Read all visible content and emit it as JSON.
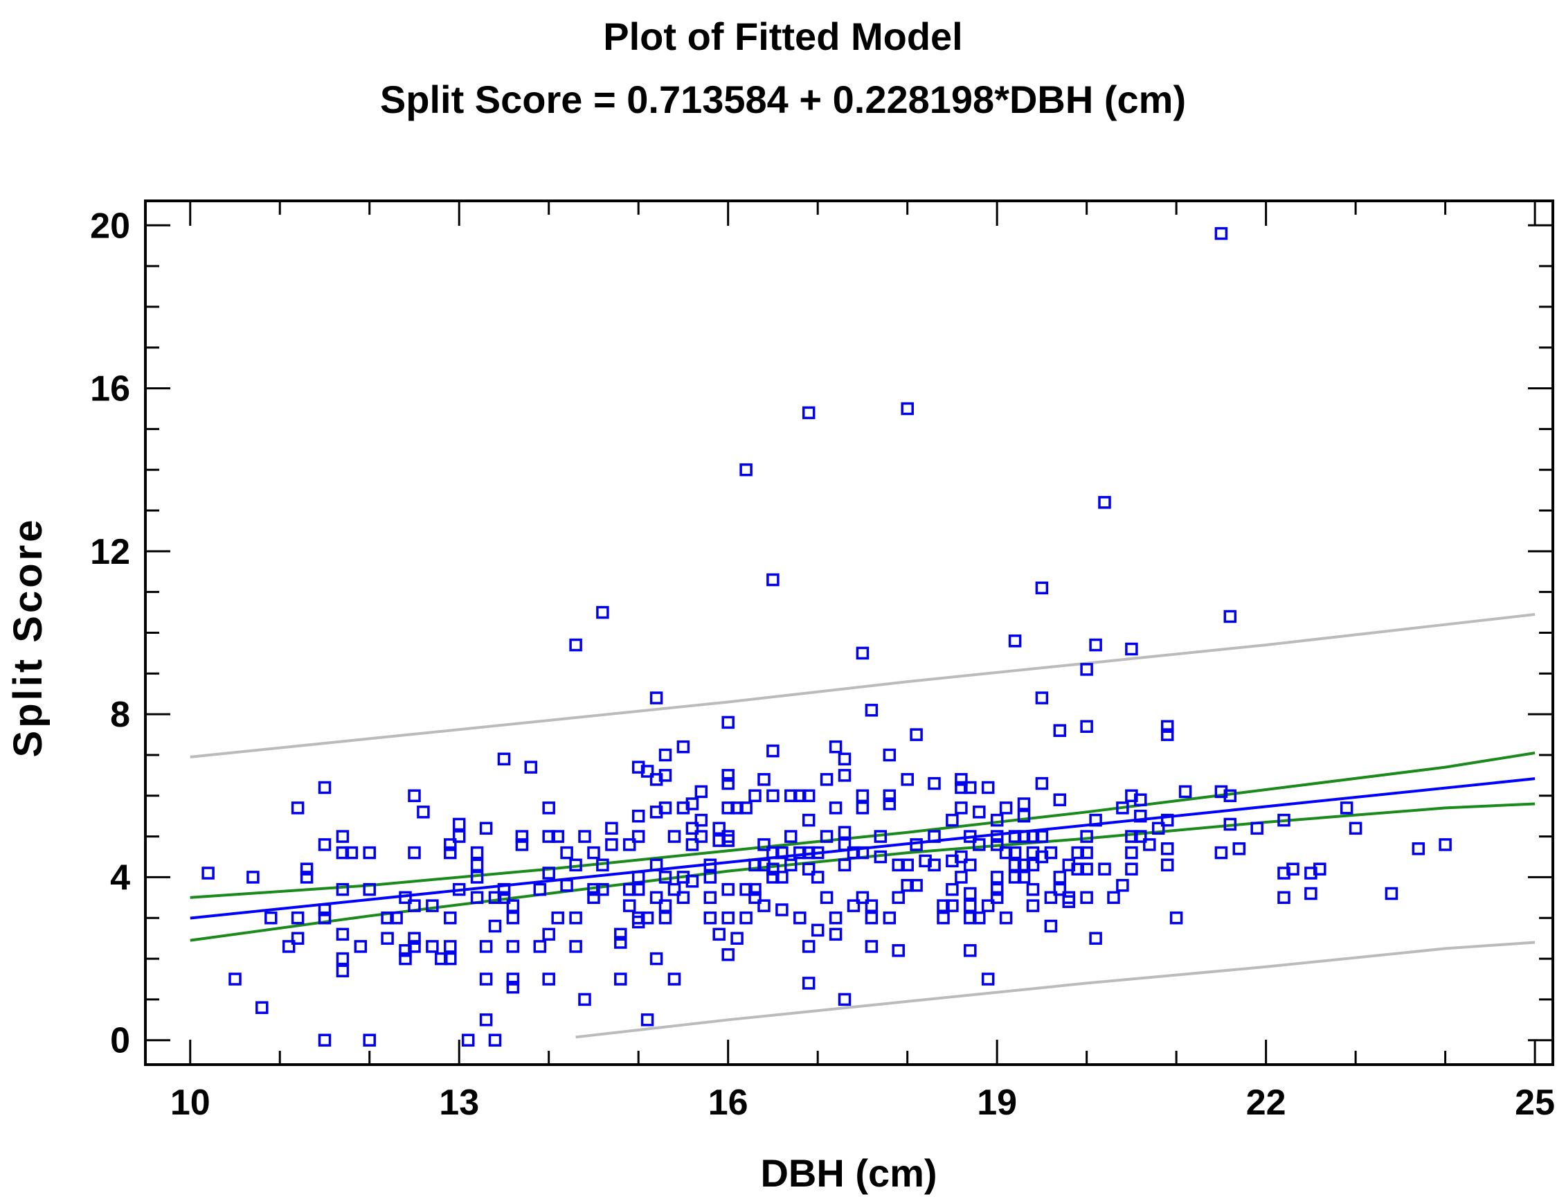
{
  "chart_data": {
    "type": "scatter",
    "title": "Plot of Fitted Model",
    "subtitle": "Split Score = 0.713584 + 0.228198*DBH (cm)",
    "xlabel": "DBH (cm)",
    "ylabel": "Split Score",
    "xlim": [
      9.5,
      25.2
    ],
    "ylim": [
      -0.6,
      20.6
    ],
    "xticks": [
      10,
      13,
      16,
      19,
      22,
      25
    ],
    "yticks": [
      0,
      4,
      8,
      12,
      16,
      20
    ],
    "grid": false,
    "colors": {
      "points": "#0000ee",
      "fit": "#0000ff",
      "confidence": "#1a8a1a",
      "prediction": "#bbbbbb",
      "axis": "#000000"
    },
    "fit": {
      "intercept": 0.713584,
      "slope": 0.228198,
      "x_range": [
        10,
        25
      ]
    },
    "confidence_band": {
      "x": [
        10,
        12,
        14,
        16,
        18,
        20,
        22,
        24,
        25
      ],
      "lower": [
        2.45,
        3.05,
        3.6,
        4.15,
        4.6,
        4.95,
        5.35,
        5.7,
        5.8
      ],
      "upper": [
        3.5,
        3.8,
        4.2,
        4.65,
        5.1,
        5.6,
        6.15,
        6.7,
        7.05
      ]
    },
    "prediction_band": {
      "x": [
        10,
        12,
        14,
        16,
        18,
        20,
        22,
        24,
        25
      ],
      "lower": [
        null,
        null,
        0.0,
        0.5,
        0.95,
        1.4,
        1.8,
        2.25,
        2.4
      ],
      "upper": [
        6.95,
        7.4,
        7.85,
        8.3,
        8.8,
        9.25,
        9.7,
        10.2,
        10.45
      ]
    },
    "prediction_lower_start_x": 14.3,
    "points": [
      [
        10.2,
        4.1
      ],
      [
        10.5,
        1.5
      ],
      [
        10.7,
        4.0
      ],
      [
        10.8,
        0.8
      ],
      [
        10.9,
        3.0
      ],
      [
        11.1,
        2.3
      ],
      [
        11.2,
        5.7
      ],
      [
        11.2,
        3.0
      ],
      [
        11.2,
        2.5
      ],
      [
        11.3,
        4.2
      ],
      [
        11.3,
        4.0
      ],
      [
        11.5,
        6.2
      ],
      [
        11.5,
        4.8
      ],
      [
        11.5,
        3.2
      ],
      [
        11.5,
        3.0
      ],
      [
        11.5,
        0.0
      ],
      [
        11.7,
        5.0
      ],
      [
        11.7,
        4.6
      ],
      [
        11.7,
        3.7
      ],
      [
        11.7,
        2.6
      ],
      [
        11.7,
        2.0
      ],
      [
        11.7,
        1.7
      ],
      [
        11.8,
        4.6
      ],
      [
        11.9,
        2.3
      ],
      [
        12.0,
        4.6
      ],
      [
        12.0,
        3.7
      ],
      [
        12.0,
        0.0
      ],
      [
        12.2,
        3.0
      ],
      [
        12.2,
        2.5
      ],
      [
        12.3,
        3.0
      ],
      [
        12.4,
        3.5
      ],
      [
        12.4,
        2.2
      ],
      [
        12.4,
        2.0
      ],
      [
        12.5,
        6.0
      ],
      [
        12.5,
        4.6
      ],
      [
        12.5,
        3.3
      ],
      [
        12.5,
        2.5
      ],
      [
        12.5,
        2.3
      ],
      [
        12.6,
        5.6
      ],
      [
        12.7,
        3.3
      ],
      [
        12.7,
        2.3
      ],
      [
        12.8,
        2.0
      ],
      [
        12.9,
        4.8
      ],
      [
        12.9,
        4.6
      ],
      [
        12.9,
        3.0
      ],
      [
        12.9,
        2.3
      ],
      [
        12.9,
        2.0
      ],
      [
        13.0,
        5.3
      ],
      [
        13.0,
        5.0
      ],
      [
        13.0,
        3.7
      ],
      [
        13.1,
        0.0
      ],
      [
        13.2,
        4.6
      ],
      [
        13.2,
        4.3
      ],
      [
        13.2,
        4.0
      ],
      [
        13.2,
        3.5
      ],
      [
        13.3,
        5.2
      ],
      [
        13.3,
        2.3
      ],
      [
        13.3,
        1.5
      ],
      [
        13.3,
        0.5
      ],
      [
        13.4,
        3.5
      ],
      [
        13.4,
        2.8
      ],
      [
        13.4,
        0.0
      ],
      [
        13.5,
        6.9
      ],
      [
        13.5,
        3.7
      ],
      [
        13.5,
        3.5
      ],
      [
        13.6,
        3.3
      ],
      [
        13.6,
        3.0
      ],
      [
        13.6,
        2.3
      ],
      [
        13.6,
        1.5
      ],
      [
        13.6,
        1.3
      ],
      [
        13.7,
        5.0
      ],
      [
        13.7,
        4.8
      ],
      [
        13.8,
        6.7
      ],
      [
        13.9,
        3.7
      ],
      [
        13.9,
        2.3
      ],
      [
        14.0,
        5.7
      ],
      [
        14.0,
        5.0
      ],
      [
        14.0,
        4.1
      ],
      [
        14.0,
        2.6
      ],
      [
        14.0,
        1.5
      ],
      [
        14.1,
        5.0
      ],
      [
        14.1,
        3.0
      ],
      [
        14.2,
        4.6
      ],
      [
        14.2,
        3.8
      ],
      [
        14.3,
        9.7
      ],
      [
        14.3,
        4.3
      ],
      [
        14.3,
        3.0
      ],
      [
        14.3,
        2.3
      ],
      [
        14.4,
        5.0
      ],
      [
        14.4,
        1.0
      ],
      [
        14.5,
        4.6
      ],
      [
        14.5,
        3.7
      ],
      [
        14.5,
        3.5
      ],
      [
        14.6,
        10.5
      ],
      [
        14.6,
        4.3
      ],
      [
        14.6,
        3.7
      ],
      [
        14.7,
        5.2
      ],
      [
        14.7,
        4.8
      ],
      [
        14.8,
        2.6
      ],
      [
        14.8,
        2.4
      ],
      [
        14.8,
        1.5
      ],
      [
        14.9,
        4.8
      ],
      [
        14.9,
        3.7
      ],
      [
        14.9,
        3.3
      ],
      [
        15.0,
        6.7
      ],
      [
        15.0,
        5.5
      ],
      [
        15.0,
        5.0
      ],
      [
        15.0,
        4.0
      ],
      [
        15.0,
        3.7
      ],
      [
        15.0,
        3.0
      ],
      [
        15.0,
        2.9
      ],
      [
        15.1,
        6.6
      ],
      [
        15.1,
        3.0
      ],
      [
        15.1,
        0.5
      ],
      [
        15.2,
        8.4
      ],
      [
        15.2,
        6.4
      ],
      [
        15.2,
        5.6
      ],
      [
        15.2,
        4.3
      ],
      [
        15.2,
        3.5
      ],
      [
        15.2,
        2.0
      ],
      [
        15.3,
        7.0
      ],
      [
        15.3,
        6.5
      ],
      [
        15.3,
        5.7
      ],
      [
        15.3,
        4.0
      ],
      [
        15.3,
        3.3
      ],
      [
        15.3,
        3.0
      ],
      [
        15.4,
        5.0
      ],
      [
        15.4,
        3.7
      ],
      [
        15.4,
        1.5
      ],
      [
        15.5,
        7.2
      ],
      [
        15.5,
        5.7
      ],
      [
        15.5,
        4.0
      ],
      [
        15.5,
        3.5
      ],
      [
        15.6,
        5.8
      ],
      [
        15.6,
        5.2
      ],
      [
        15.6,
        4.8
      ],
      [
        15.6,
        3.9
      ],
      [
        15.7,
        6.1
      ],
      [
        15.7,
        5.4
      ],
      [
        15.7,
        5.0
      ],
      [
        15.8,
        4.3
      ],
      [
        15.8,
        4.0
      ],
      [
        15.8,
        3.5
      ],
      [
        15.8,
        3.0
      ],
      [
        15.9,
        5.2
      ],
      [
        15.9,
        4.9
      ],
      [
        15.9,
        2.6
      ],
      [
        16.0,
        7.8
      ],
      [
        16.0,
        6.5
      ],
      [
        16.0,
        6.3
      ],
      [
        16.0,
        5.7
      ],
      [
        16.0,
        5.0
      ],
      [
        16.0,
        4.9
      ],
      [
        16.0,
        3.7
      ],
      [
        16.0,
        3.0
      ],
      [
        16.0,
        2.1
      ],
      [
        16.1,
        5.7
      ],
      [
        16.1,
        2.5
      ],
      [
        16.2,
        14.0
      ],
      [
        16.2,
        5.7
      ],
      [
        16.2,
        3.7
      ],
      [
        16.2,
        3.0
      ],
      [
        16.3,
        6.0
      ],
      [
        16.3,
        4.3
      ],
      [
        16.3,
        3.7
      ],
      [
        16.3,
        3.5
      ],
      [
        16.4,
        6.4
      ],
      [
        16.4,
        4.8
      ],
      [
        16.4,
        4.3
      ],
      [
        16.4,
        3.3
      ],
      [
        16.5,
        11.3
      ],
      [
        16.5,
        7.1
      ],
      [
        16.5,
        6.0
      ],
      [
        16.5,
        4.6
      ],
      [
        16.5,
        4.2
      ],
      [
        16.5,
        4.0
      ],
      [
        16.6,
        4.6
      ],
      [
        16.6,
        4.0
      ],
      [
        16.6,
        3.2
      ],
      [
        16.7,
        6.0
      ],
      [
        16.7,
        5.0
      ],
      [
        16.7,
        4.3
      ],
      [
        16.8,
        6.0
      ],
      [
        16.8,
        4.6
      ],
      [
        16.8,
        3.0
      ],
      [
        16.9,
        15.4
      ],
      [
        16.9,
        6.0
      ],
      [
        16.9,
        5.4
      ],
      [
        16.9,
        4.6
      ],
      [
        16.9,
        4.2
      ],
      [
        16.9,
        2.3
      ],
      [
        16.9,
        1.4
      ],
      [
        17.0,
        4.6
      ],
      [
        17.0,
        4.0
      ],
      [
        17.0,
        2.7
      ],
      [
        17.1,
        6.4
      ],
      [
        17.1,
        5.0
      ],
      [
        17.1,
        3.5
      ],
      [
        17.2,
        7.2
      ],
      [
        17.2,
        5.7
      ],
      [
        17.2,
        3.0
      ],
      [
        17.2,
        2.6
      ],
      [
        17.3,
        6.9
      ],
      [
        17.3,
        6.5
      ],
      [
        17.3,
        5.1
      ],
      [
        17.3,
        4.8
      ],
      [
        17.3,
        4.3
      ],
      [
        17.3,
        1.0
      ],
      [
        17.4,
        4.6
      ],
      [
        17.4,
        3.3
      ],
      [
        17.5,
        9.5
      ],
      [
        17.5,
        6.0
      ],
      [
        17.5,
        5.7
      ],
      [
        17.5,
        4.6
      ],
      [
        17.5,
        3.5
      ],
      [
        17.6,
        8.1
      ],
      [
        17.6,
        3.3
      ],
      [
        17.6,
        3.0
      ],
      [
        17.6,
        2.3
      ],
      [
        17.7,
        5.0
      ],
      [
        17.7,
        4.5
      ],
      [
        17.8,
        7.0
      ],
      [
        17.8,
        6.0
      ],
      [
        17.8,
        5.8
      ],
      [
        17.8,
        3.0
      ],
      [
        17.9,
        4.3
      ],
      [
        17.9,
        3.5
      ],
      [
        17.9,
        2.2
      ],
      [
        18.0,
        15.5
      ],
      [
        18.0,
        6.4
      ],
      [
        18.0,
        4.3
      ],
      [
        18.0,
        3.8
      ],
      [
        18.1,
        7.5
      ],
      [
        18.1,
        4.8
      ],
      [
        18.1,
        3.8
      ],
      [
        18.2,
        4.4
      ],
      [
        18.3,
        6.3
      ],
      [
        18.3,
        5.0
      ],
      [
        18.3,
        4.3
      ],
      [
        18.4,
        3.3
      ],
      [
        18.4,
        3.0
      ],
      [
        18.5,
        5.4
      ],
      [
        18.5,
        4.4
      ],
      [
        18.5,
        3.7
      ],
      [
        18.5,
        3.3
      ],
      [
        18.6,
        6.4
      ],
      [
        18.6,
        6.2
      ],
      [
        18.6,
        5.7
      ],
      [
        18.6,
        4.5
      ],
      [
        18.6,
        4.0
      ],
      [
        18.7,
        6.2
      ],
      [
        18.7,
        5.0
      ],
      [
        18.7,
        4.3
      ],
      [
        18.7,
        3.6
      ],
      [
        18.7,
        3.3
      ],
      [
        18.7,
        3.0
      ],
      [
        18.7,
        2.2
      ],
      [
        18.8,
        5.6
      ],
      [
        18.8,
        4.8
      ],
      [
        18.8,
        3.0
      ],
      [
        18.9,
        6.2
      ],
      [
        18.9,
        3.3
      ],
      [
        18.9,
        1.5
      ],
      [
        19.0,
        5.4
      ],
      [
        19.0,
        5.0
      ],
      [
        19.0,
        4.8
      ],
      [
        19.0,
        4.0
      ],
      [
        19.0,
        3.7
      ],
      [
        19.0,
        3.5
      ],
      [
        19.1,
        5.7
      ],
      [
        19.1,
        4.6
      ],
      [
        19.1,
        3.0
      ],
      [
        19.2,
        9.8
      ],
      [
        19.2,
        5.0
      ],
      [
        19.2,
        4.6
      ],
      [
        19.2,
        4.3
      ],
      [
        19.2,
        4.0
      ],
      [
        19.3,
        5.8
      ],
      [
        19.3,
        5.5
      ],
      [
        19.3,
        5.0
      ],
      [
        19.3,
        4.3
      ],
      [
        19.3,
        4.0
      ],
      [
        19.4,
        5.0
      ],
      [
        19.4,
        4.6
      ],
      [
        19.4,
        4.3
      ],
      [
        19.4,
        3.7
      ],
      [
        19.4,
        3.3
      ],
      [
        19.5,
        11.1
      ],
      [
        19.5,
        8.4
      ],
      [
        19.5,
        6.3
      ],
      [
        19.5,
        5.0
      ],
      [
        19.5,
        4.5
      ],
      [
        19.6,
        4.6
      ],
      [
        19.6,
        3.5
      ],
      [
        19.6,
        2.8
      ],
      [
        19.7,
        7.6
      ],
      [
        19.7,
        5.9
      ],
      [
        19.7,
        4.0
      ],
      [
        19.7,
        3.7
      ],
      [
        19.8,
        4.3
      ],
      [
        19.8,
        3.5
      ],
      [
        19.8,
        3.4
      ],
      [
        19.9,
        4.6
      ],
      [
        19.9,
        4.2
      ],
      [
        20.0,
        9.1
      ],
      [
        20.0,
        7.7
      ],
      [
        20.0,
        5.0
      ],
      [
        20.0,
        4.6
      ],
      [
        20.0,
        4.2
      ],
      [
        20.0,
        3.5
      ],
      [
        20.1,
        9.7
      ],
      [
        20.1,
        5.4
      ],
      [
        20.1,
        2.5
      ],
      [
        20.2,
        13.2
      ],
      [
        20.2,
        4.2
      ],
      [
        20.3,
        3.5
      ],
      [
        20.4,
        3.8
      ],
      [
        20.4,
        5.7
      ],
      [
        20.5,
        9.6
      ],
      [
        20.5,
        6.0
      ],
      [
        20.5,
        5.0
      ],
      [
        20.5,
        4.6
      ],
      [
        20.5,
        4.2
      ],
      [
        20.6,
        5.9
      ],
      [
        20.6,
        5.5
      ],
      [
        20.6,
        5.0
      ],
      [
        20.7,
        4.8
      ],
      [
        20.8,
        5.2
      ],
      [
        20.9,
        7.7
      ],
      [
        20.9,
        7.5
      ],
      [
        20.9,
        5.4
      ],
      [
        20.9,
        4.7
      ],
      [
        20.9,
        4.3
      ],
      [
        21.0,
        3.0
      ],
      [
        21.1,
        6.1
      ],
      [
        21.5,
        19.8
      ],
      [
        21.5,
        6.1
      ],
      [
        21.5,
        4.6
      ],
      [
        21.6,
        10.4
      ],
      [
        21.6,
        6.0
      ],
      [
        21.6,
        5.3
      ],
      [
        21.7,
        4.7
      ],
      [
        21.9,
        5.2
      ],
      [
        22.2,
        5.4
      ],
      [
        22.2,
        4.1
      ],
      [
        22.2,
        3.5
      ],
      [
        22.3,
        4.2
      ],
      [
        22.5,
        4.1
      ],
      [
        22.5,
        3.6
      ],
      [
        22.6,
        4.2
      ],
      [
        22.9,
        5.7
      ],
      [
        23.0,
        5.2
      ],
      [
        23.4,
        3.6
      ],
      [
        23.7,
        4.7
      ],
      [
        24.0,
        4.8
      ]
    ]
  }
}
